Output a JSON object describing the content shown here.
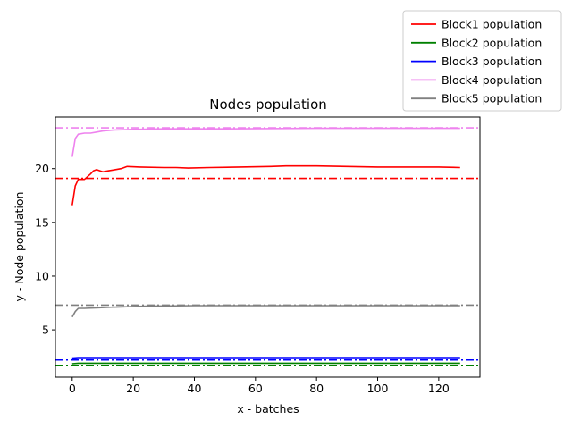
{
  "chart_data": {
    "type": "line",
    "title": "Nodes population",
    "xlabel": "x - batches",
    "ylabel": "y - Node population",
    "xlim": [
      -5.5,
      133.5
    ],
    "ylim": [
      0.6,
      24.8
    ],
    "xticks": [
      0,
      20,
      40,
      60,
      80,
      100,
      120
    ],
    "yticks": [
      5,
      10,
      15,
      20
    ],
    "grid": false,
    "legend_position": "outside-top-right",
    "series": [
      {
        "name": "Block1 population",
        "color": "#ff0000",
        "reference": 19.1,
        "points": [
          [
            0,
            16.6
          ],
          [
            1,
            18.4
          ],
          [
            2,
            19.0
          ],
          [
            4,
            19.0
          ],
          [
            6,
            19.5
          ],
          [
            7,
            19.8
          ],
          [
            8,
            19.9
          ],
          [
            10,
            19.7
          ],
          [
            12,
            19.8
          ],
          [
            14,
            19.9
          ],
          [
            16,
            20.0
          ],
          [
            18,
            20.2
          ],
          [
            22,
            20.15
          ],
          [
            30,
            20.1
          ],
          [
            34,
            20.1
          ],
          [
            38,
            20.05
          ],
          [
            45,
            20.1
          ],
          [
            55,
            20.15
          ],
          [
            65,
            20.2
          ],
          [
            70,
            20.25
          ],
          [
            80,
            20.25
          ],
          [
            90,
            20.2
          ],
          [
            100,
            20.15
          ],
          [
            110,
            20.15
          ],
          [
            120,
            20.15
          ],
          [
            127,
            20.1
          ]
        ]
      },
      {
        "name": "Block2 population",
        "color": "#008000",
        "reference": 1.7,
        "points": [
          [
            0,
            1.85
          ],
          [
            2,
            1.9
          ],
          [
            10,
            1.9
          ],
          [
            30,
            1.9
          ],
          [
            60,
            1.9
          ],
          [
            90,
            1.9
          ],
          [
            127,
            1.9
          ]
        ]
      },
      {
        "name": "Block3 population",
        "color": "#0000ff",
        "reference": 2.2,
        "points": [
          [
            0,
            2.3
          ],
          [
            2,
            2.35
          ],
          [
            10,
            2.35
          ],
          [
            30,
            2.35
          ],
          [
            60,
            2.35
          ],
          [
            90,
            2.35
          ],
          [
            127,
            2.35
          ]
        ]
      },
      {
        "name": "Block4 population",
        "color": "#ee82ee",
        "reference": 23.8,
        "points": [
          [
            0,
            21.1
          ],
          [
            1,
            22.8
          ],
          [
            2,
            23.2
          ],
          [
            4,
            23.3
          ],
          [
            6,
            23.3
          ],
          [
            8,
            23.4
          ],
          [
            10,
            23.5
          ],
          [
            14,
            23.6
          ],
          [
            20,
            23.65
          ],
          [
            30,
            23.7
          ],
          [
            50,
            23.7
          ],
          [
            80,
            23.75
          ],
          [
            127,
            23.75
          ]
        ]
      },
      {
        "name": "Block5 population",
        "color": "#808080",
        "reference": 7.3,
        "points": [
          [
            0,
            6.2
          ],
          [
            1,
            6.7
          ],
          [
            2,
            7.0
          ],
          [
            4,
            7.0
          ],
          [
            8,
            7.05
          ],
          [
            12,
            7.1
          ],
          [
            18,
            7.15
          ],
          [
            24,
            7.2
          ],
          [
            40,
            7.25
          ],
          [
            60,
            7.25
          ],
          [
            90,
            7.25
          ],
          [
            127,
            7.25
          ]
        ]
      }
    ]
  }
}
